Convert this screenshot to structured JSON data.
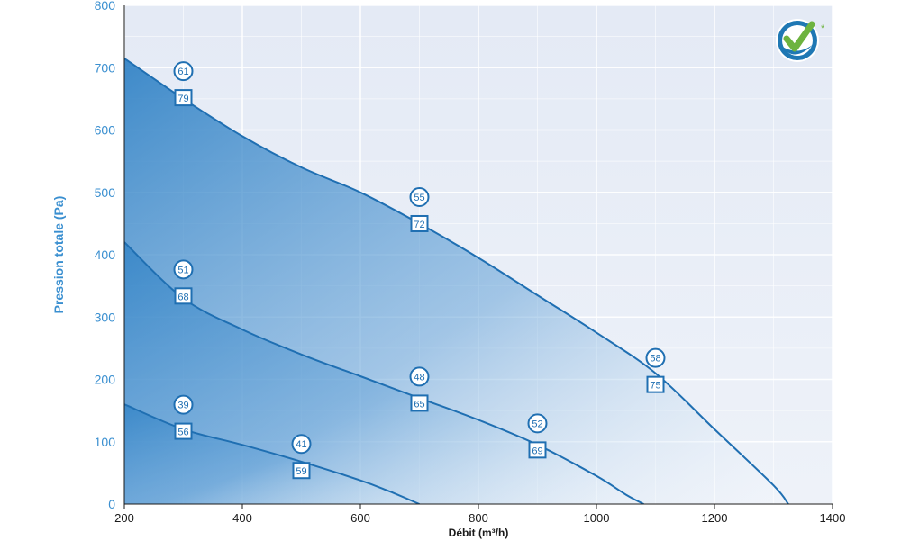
{
  "chart_data": {
    "type": "area",
    "xlabel": "Débit (m³/h)",
    "ylabel": "Pression totale (Pa)",
    "xlim": [
      200,
      1400
    ],
    "ylim": [
      0,
      800
    ],
    "x_ticks": [
      "200",
      "400",
      "600",
      "800",
      "1000",
      "1200",
      "1400"
    ],
    "y_ticks": [
      "0",
      "100",
      "200",
      "300",
      "400",
      "500",
      "600",
      "700",
      "800"
    ],
    "grid": true,
    "series": [
      {
        "x": [
          200,
          300,
          400,
          500,
          600,
          700,
          800,
          900,
          1000,
          1100,
          1200,
          1300,
          1325
        ],
        "y": [
          715,
          650,
          590,
          540,
          500,
          450,
          395,
          335,
          275,
          210,
          120,
          30,
          0
        ]
      },
      {
        "x": [
          200,
          300,
          400,
          500,
          600,
          700,
          800,
          900,
          1000,
          1050,
          1080
        ],
        "y": [
          420,
          330,
          280,
          240,
          205,
          170,
          135,
          95,
          45,
          15,
          0
        ]
      },
      {
        "x": [
          200,
          300,
          400,
          500,
          600,
          650,
          700
        ],
        "y": [
          160,
          120,
          95,
          68,
          38,
          20,
          0
        ]
      }
    ],
    "annotations": [
      {
        "x": 300,
        "y": 680,
        "circle": "61",
        "square": "79"
      },
      {
        "x": 700,
        "y": 478,
        "circle": "55",
        "square": "72"
      },
      {
        "x": 1100,
        "y": 220,
        "circle": "58",
        "square": "75"
      },
      {
        "x": 300,
        "y": 362,
        "circle": "51",
        "square": "68"
      },
      {
        "x": 700,
        "y": 190,
        "circle": "48",
        "square": "65"
      },
      {
        "x": 900,
        "y": 115,
        "circle": "52",
        "square": "69"
      },
      {
        "x": 300,
        "y": 145,
        "circle": "39",
        "square": "56"
      },
      {
        "x": 500,
        "y": 82,
        "circle": "41",
        "square": "59"
      }
    ]
  },
  "logo": {
    "icon": "check-badge-icon",
    "colors": [
      "#6db33f",
      "#1f78b4"
    ]
  }
}
